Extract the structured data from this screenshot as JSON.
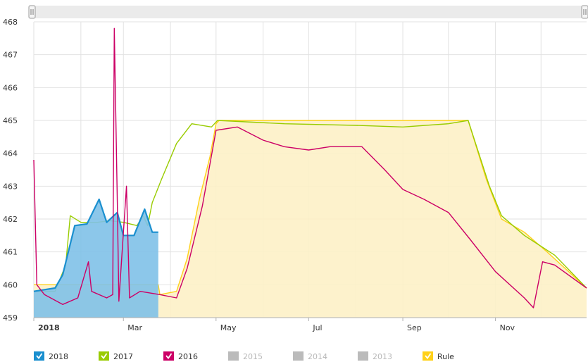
{
  "chart_data": {
    "type": "area",
    "title": "",
    "xlabel": "",
    "ylabel": "",
    "ylim": [
      459,
      468
    ],
    "xlim": [
      "2018-01-01",
      "2018-12-31"
    ],
    "yticks": [
      459,
      460,
      461,
      462,
      463,
      464,
      465,
      466,
      467,
      468
    ],
    "yticklabels": [
      "459",
      "460",
      "461",
      "462",
      "463",
      "464",
      "465",
      "466",
      "467",
      "468"
    ],
    "xticks": [
      {
        "date": "2018-01-01",
        "label": "2018",
        "bold": true
      },
      {
        "date": "2018-03-01",
        "label": "Mar",
        "bold": false
      },
      {
        "date": "2018-05-01",
        "label": "May",
        "bold": false
      },
      {
        "date": "2018-07-01",
        "label": "Jul",
        "bold": false
      },
      {
        "date": "2018-09-01",
        "label": "Sep",
        "bold": false
      },
      {
        "date": "2018-11-01",
        "label": "Nov",
        "bold": false
      }
    ],
    "grid": true,
    "legend_position": "bottom",
    "series": [
      {
        "name": "Rule",
        "color": "#ffd11a",
        "fill": "#fdf1c7",
        "type": "area",
        "visible": true,
        "points": [
          [
            "2018-01-01",
            460.0
          ],
          [
            "2018-03-24",
            460.0
          ],
          [
            "2018-03-25",
            459.7
          ],
          [
            "2018-04-05",
            459.8
          ],
          [
            "2018-04-12",
            460.8
          ],
          [
            "2018-04-20",
            462.6
          ],
          [
            "2018-04-27",
            463.9
          ],
          [
            "2018-05-01",
            464.9
          ],
          [
            "2018-05-03",
            465.0
          ],
          [
            "2018-10-14",
            465.0
          ],
          [
            "2018-10-26",
            463.2
          ],
          [
            "2018-11-05",
            462.0
          ],
          [
            "2018-11-20",
            461.6
          ],
          [
            "2018-12-05",
            461.0
          ],
          [
            "2018-12-31",
            459.9
          ]
        ]
      },
      {
        "name": "2017",
        "color": "#99cc00",
        "type": "line",
        "visible": true,
        "points": [
          [
            "2018-01-01",
            459.8
          ],
          [
            "2018-01-15",
            459.8
          ],
          [
            "2018-01-22",
            460.6
          ],
          [
            "2018-01-25",
            462.1
          ],
          [
            "2018-02-01",
            461.9
          ],
          [
            "2018-02-12",
            461.9
          ],
          [
            "2018-02-20",
            461.95
          ],
          [
            "2018-03-01",
            461.9
          ],
          [
            "2018-03-10",
            461.8
          ],
          [
            "2018-03-14",
            462.1
          ],
          [
            "2018-03-17",
            461.8
          ],
          [
            "2018-03-20",
            462.5
          ],
          [
            "2018-03-26",
            463.2
          ],
          [
            "2018-04-05",
            464.3
          ],
          [
            "2018-04-15",
            464.9
          ],
          [
            "2018-04-28",
            464.8
          ],
          [
            "2018-05-02",
            465.0
          ],
          [
            "2018-06-15",
            464.9
          ],
          [
            "2018-08-01",
            464.85
          ],
          [
            "2018-09-01",
            464.8
          ],
          [
            "2018-10-01",
            464.9
          ],
          [
            "2018-10-14",
            465.0
          ],
          [
            "2018-10-28",
            463.0
          ],
          [
            "2018-11-05",
            462.1
          ],
          [
            "2018-11-20",
            461.5
          ],
          [
            "2018-12-10",
            460.9
          ],
          [
            "2018-12-31",
            459.9
          ]
        ]
      },
      {
        "name": "2018",
        "color": "#1a8fcf",
        "fill": "#7fc1e8",
        "type": "area",
        "visible": true,
        "points": [
          [
            "2018-01-01",
            459.8
          ],
          [
            "2018-01-15",
            459.9
          ],
          [
            "2018-01-20",
            460.3
          ],
          [
            "2018-01-28",
            461.8
          ],
          [
            "2018-02-05",
            461.85
          ],
          [
            "2018-02-13",
            462.6
          ],
          [
            "2018-02-18",
            461.9
          ],
          [
            "2018-02-25",
            462.2
          ],
          [
            "2018-03-01",
            461.5
          ],
          [
            "2018-03-08",
            461.5
          ],
          [
            "2018-03-15",
            462.3
          ],
          [
            "2018-03-20",
            461.6
          ],
          [
            "2018-03-24",
            461.6
          ]
        ]
      },
      {
        "name": "2016",
        "color": "#cc0066",
        "type": "line",
        "visible": true,
        "points": [
          [
            "2018-01-01",
            463.8
          ],
          [
            "2018-01-03",
            460.0
          ],
          [
            "2018-01-08",
            459.7
          ],
          [
            "2018-01-20",
            459.4
          ],
          [
            "2018-01-30",
            459.6
          ],
          [
            "2018-02-06",
            460.7
          ],
          [
            "2018-02-08",
            459.8
          ],
          [
            "2018-02-18",
            459.6
          ],
          [
            "2018-02-22",
            459.7
          ],
          [
            "2018-02-23",
            467.8
          ],
          [
            "2018-02-25",
            462.5
          ],
          [
            "2018-02-26",
            459.5
          ],
          [
            "2018-03-03",
            463.0
          ],
          [
            "2018-03-05",
            459.6
          ],
          [
            "2018-03-12",
            459.8
          ],
          [
            "2018-03-25",
            459.7
          ],
          [
            "2018-04-05",
            459.6
          ],
          [
            "2018-04-12",
            460.5
          ],
          [
            "2018-04-22",
            462.4
          ],
          [
            "2018-05-01",
            464.7
          ],
          [
            "2018-05-15",
            464.8
          ],
          [
            "2018-06-01",
            464.4
          ],
          [
            "2018-06-15",
            464.2
          ],
          [
            "2018-07-01",
            464.1
          ],
          [
            "2018-07-15",
            464.2
          ],
          [
            "2018-08-05",
            464.2
          ],
          [
            "2018-08-20",
            463.5
          ],
          [
            "2018-09-01",
            462.9
          ],
          [
            "2018-09-15",
            462.6
          ],
          [
            "2018-10-01",
            462.2
          ],
          [
            "2018-10-15",
            461.4
          ],
          [
            "2018-11-01",
            460.4
          ],
          [
            "2018-11-20",
            459.6
          ],
          [
            "2018-11-26",
            459.3
          ],
          [
            "2018-12-02",
            460.7
          ],
          [
            "2018-12-10",
            460.6
          ],
          [
            "2018-12-31",
            459.9
          ]
        ]
      }
    ]
  },
  "navigator": {
    "left_handle_icon": "grip-handle-icon",
    "right_handle_icon": "grip-handle-icon"
  },
  "legend": {
    "items": [
      {
        "name": "2018",
        "color": "#1a8fcf",
        "checked": true
      },
      {
        "name": "2017",
        "color": "#99cc00",
        "checked": true
      },
      {
        "name": "2016",
        "color": "#cc0066",
        "checked": true
      },
      {
        "name": "2015",
        "color": "#bbbbbb",
        "checked": false
      },
      {
        "name": "2014",
        "color": "#bbbbbb",
        "checked": false
      },
      {
        "name": "2013",
        "color": "#bbbbbb",
        "checked": false
      },
      {
        "name": "Rule",
        "color": "#ffd11a",
        "checked": true
      }
    ]
  }
}
